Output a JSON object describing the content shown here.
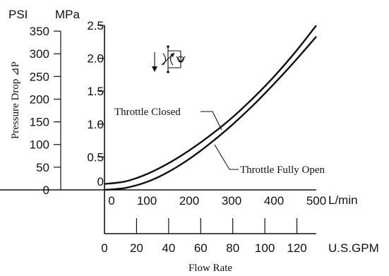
{
  "chart_data": {
    "type": "line",
    "title": "",
    "xlabel": "Flow Rate",
    "ylabel": "Pressure Drop ⊿P",
    "x_unit_primary": "L/min",
    "x_unit_secondary": "U.S.GPM",
    "y_unit_left": "PSI",
    "y_unit_right": "MPa",
    "x_ticks_lpm": [
      0,
      100,
      200,
      300,
      400,
      500
    ],
    "x_ticks_gpm": [
      0,
      20,
      40,
      60,
      80,
      100,
      120
    ],
    "y_ticks_psi": [
      0,
      50,
      100,
      150,
      200,
      250,
      300,
      350
    ],
    "y_ticks_mpa": [
      0,
      0.5,
      1.0,
      1.5,
      2.0,
      2.5
    ],
    "y_ticks_mpa_labels": [
      "0",
      "0.5",
      "1.0",
      "1.5",
      "2.0",
      "2.5"
    ],
    "xlim_lpm": [
      0,
      500
    ],
    "ylim_mpa": [
      0,
      2.5
    ],
    "grid": false,
    "series": [
      {
        "name": "Throttle Closed",
        "x": [
          0,
          50,
          100,
          150,
          200,
          250,
          300,
          350,
          400,
          450,
          500
        ],
        "y": [
          0.09,
          0.13,
          0.24,
          0.4,
          0.6,
          0.83,
          1.09,
          1.39,
          1.72,
          2.09,
          2.5
        ]
      },
      {
        "name": "Throttle Fully Open",
        "x": [
          0,
          50,
          100,
          150,
          200,
          250,
          300,
          350,
          400,
          450,
          500
        ],
        "y": [
          0.0,
          0.03,
          0.12,
          0.27,
          0.47,
          0.71,
          0.98,
          1.28,
          1.61,
          1.96,
          2.33
        ]
      }
    ]
  }
}
